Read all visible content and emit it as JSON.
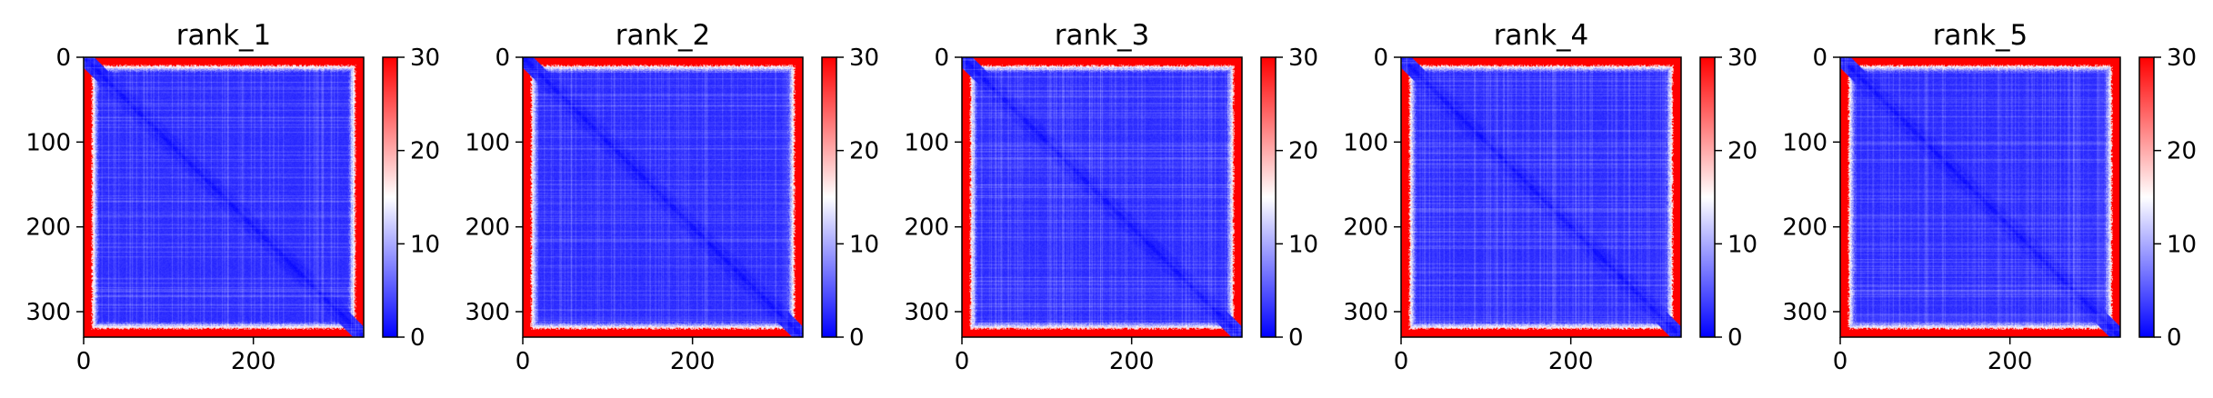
{
  "chart_data": [
    {
      "type": "heatmap",
      "title": "rank_1",
      "n": 330,
      "x_ticks": [
        {
          "value": 0,
          "label": "0"
        },
        {
          "value": 200,
          "label": "200"
        }
      ],
      "y_ticks": [
        {
          "value": 0,
          "label": "0"
        },
        {
          "value": 100,
          "label": "100"
        },
        {
          "value": 200,
          "label": "200"
        },
        {
          "value": 300,
          "label": "300"
        }
      ],
      "colorbar": {
        "min": 0,
        "max": 30,
        "ticks": [
          {
            "value": 0,
            "label": "0"
          },
          {
            "value": 10,
            "label": "10"
          },
          {
            "value": 20,
            "label": "20"
          },
          {
            "value": 30,
            "label": "30"
          }
        ],
        "colormap": "bwr"
      },
      "grid": false
    },
    {
      "type": "heatmap",
      "title": "rank_2",
      "n": 330,
      "x_ticks": [
        {
          "value": 0,
          "label": "0"
        },
        {
          "value": 200,
          "label": "200"
        }
      ],
      "y_ticks": [
        {
          "value": 0,
          "label": "0"
        },
        {
          "value": 100,
          "label": "100"
        },
        {
          "value": 200,
          "label": "200"
        },
        {
          "value": 300,
          "label": "300"
        }
      ],
      "colorbar": {
        "min": 0,
        "max": 30,
        "ticks": [
          {
            "value": 0,
            "label": "0"
          },
          {
            "value": 10,
            "label": "10"
          },
          {
            "value": 20,
            "label": "20"
          },
          {
            "value": 30,
            "label": "30"
          }
        ],
        "colormap": "bwr"
      },
      "grid": false
    },
    {
      "type": "heatmap",
      "title": "rank_3",
      "n": 330,
      "x_ticks": [
        {
          "value": 0,
          "label": "0"
        },
        {
          "value": 200,
          "label": "200"
        }
      ],
      "y_ticks": [
        {
          "value": 0,
          "label": "0"
        },
        {
          "value": 100,
          "label": "100"
        },
        {
          "value": 200,
          "label": "200"
        },
        {
          "value": 300,
          "label": "300"
        }
      ],
      "colorbar": {
        "min": 0,
        "max": 30,
        "ticks": [
          {
            "value": 0,
            "label": "0"
          },
          {
            "value": 10,
            "label": "10"
          },
          {
            "value": 20,
            "label": "20"
          },
          {
            "value": 30,
            "label": "30"
          }
        ],
        "colormap": "bwr"
      },
      "grid": false
    },
    {
      "type": "heatmap",
      "title": "rank_4",
      "n": 330,
      "x_ticks": [
        {
          "value": 0,
          "label": "0"
        },
        {
          "value": 200,
          "label": "200"
        }
      ],
      "y_ticks": [
        {
          "value": 0,
          "label": "0"
        },
        {
          "value": 100,
          "label": "100"
        },
        {
          "value": 200,
          "label": "200"
        },
        {
          "value": 300,
          "label": "300"
        }
      ],
      "colorbar": {
        "min": 0,
        "max": 30,
        "ticks": [
          {
            "value": 0,
            "label": "0"
          },
          {
            "value": 10,
            "label": "10"
          },
          {
            "value": 20,
            "label": "20"
          },
          {
            "value": 30,
            "label": "30"
          }
        ],
        "colormap": "bwr"
      },
      "grid": false
    },
    {
      "type": "heatmap",
      "title": "rank_5",
      "n": 330,
      "x_ticks": [
        {
          "value": 0,
          "label": "0"
        },
        {
          "value": 200,
          "label": "200"
        }
      ],
      "y_ticks": [
        {
          "value": 0,
          "label": "0"
        },
        {
          "value": 100,
          "label": "100"
        },
        {
          "value": 200,
          "label": "200"
        },
        {
          "value": 300,
          "label": "300"
        }
      ],
      "colorbar": {
        "min": 0,
        "max": 30,
        "ticks": [
          {
            "value": 0,
            "label": "0"
          },
          {
            "value": 10,
            "label": "10"
          },
          {
            "value": 20,
            "label": "20"
          },
          {
            "value": 30,
            "label": "30"
          }
        ],
        "colormap": "bwr"
      },
      "grid": false
    }
  ],
  "colors": {
    "low": "#0000ff",
    "mid": "#ffffff",
    "high": "#ff0000"
  }
}
